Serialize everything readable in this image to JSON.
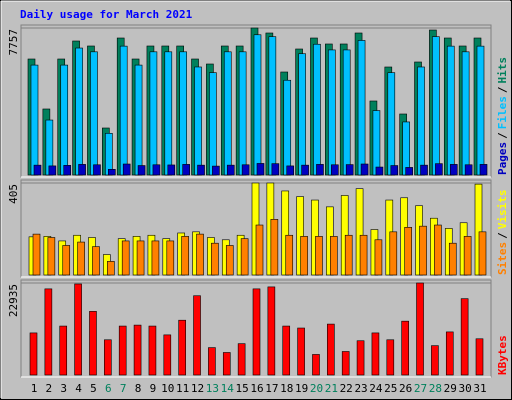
{
  "title": "Daily usage for March 2021",
  "chart_data": [
    {
      "type": "bar3d",
      "ylim": [
        0,
        7757
      ],
      "yticks": [
        7757
      ],
      "legend_separator": "/",
      "series": [
        {
          "name": "Hits",
          "color": "#00805c",
          "values": [
            6121,
            3483,
            6121,
            7071,
            6807,
            2480,
            7229,
            6121,
            6807,
            6807,
            6807,
            6121,
            5857,
            6807,
            6807,
            7757,
            7493,
            5435,
            6649,
            7229,
            6913,
            6913,
            7493,
            3905,
            5699,
            3219,
            5963,
            7651,
            7229,
            6807,
            7229
          ]
        },
        {
          "name": "Files",
          "color": "#00c0ff",
          "values": [
            5800,
            2900,
            5800,
            6700,
            6500,
            2200,
            6800,
            5800,
            6500,
            6500,
            6500,
            5700,
            5400,
            6500,
            6500,
            7400,
            7300,
            5000,
            6400,
            6900,
            6600,
            6600,
            7100,
            3400,
            5400,
            2800,
            5700,
            7300,
            6800,
            6500,
            6800
          ]
        },
        {
          "name": "Pages",
          "color": "#0000c0",
          "values": [
            520,
            480,
            510,
            560,
            540,
            300,
            580,
            500,
            540,
            530,
            560,
            520,
            470,
            520,
            540,
            610,
            600,
            480,
            520,
            560,
            540,
            550,
            580,
            420,
            500,
            400,
            520,
            600,
            560,
            540,
            560
          ]
        }
      ]
    },
    {
      "type": "bar3d",
      "ylim": [
        0,
        405
      ],
      "yticks": [
        405
      ],
      "legend_separator": "/",
      "series": [
        {
          "name": "Visits",
          "color": "#ffff00",
          "values": [
            168,
            170,
            150,
            175,
            165,
            90,
            160,
            170,
            175,
            160,
            185,
            190,
            165,
            155,
            175,
            405,
            405,
            370,
            345,
            330,
            300,
            350,
            380,
            200,
            330,
            340,
            305,
            250,
            205,
            230,
            400
          ]
        },
        {
          "name": "Sites",
          "color": "#ff8000",
          "values": [
            180,
            165,
            130,
            145,
            125,
            60,
            150,
            150,
            150,
            150,
            170,
            180,
            140,
            130,
            160,
            220,
            245,
            175,
            170,
            170,
            170,
            175,
            175,
            155,
            190,
            210,
            215,
            220,
            140,
            170,
            190
          ]
        }
      ]
    },
    {
      "type": "bar3d",
      "ylim": [
        0,
        22935
      ],
      "yticks": [
        22935
      ],
      "categories": [
        "1",
        "2",
        "3",
        "4",
        "5",
        "6",
        "7",
        "8",
        "9",
        "10",
        "11",
        "12",
        "13",
        "14",
        "15",
        "16",
        "17",
        "18",
        "19",
        "20",
        "21",
        "22",
        "23",
        "24",
        "25",
        "26",
        "27",
        "28",
        "29",
        "30",
        "31"
      ],
      "category_colors": [
        "#000000",
        "#000000",
        "#000000",
        "#000000",
        "#000000",
        "#00805c",
        "#00805c",
        "#000000",
        "#000000",
        "#000000",
        "#000000",
        "#000000",
        "#00805c",
        "#00805c",
        "#000000",
        "#000000",
        "#000000",
        "#000000",
        "#000000",
        "#00805c",
        "#00805c",
        "#000000",
        "#000000",
        "#000000",
        "#000000",
        "#000000",
        "#00805c",
        "#00805c",
        "#000000",
        "#000000",
        "#000000"
      ],
      "series": [
        {
          "name": "KBytes",
          "color": "#ff0000",
          "values": [
            10490,
            21470,
            12200,
            22690,
            15860,
            8780,
            12200,
            12440,
            12200,
            10000,
            13660,
            19760,
            6830,
            5610,
            7810,
            21470,
            21960,
            12200,
            11710,
            5120,
            12690,
            5860,
            8540,
            10490,
            8780,
            13420,
            22935,
            7320,
            10740,
            19030,
            9030
          ]
        }
      ]
    }
  ]
}
